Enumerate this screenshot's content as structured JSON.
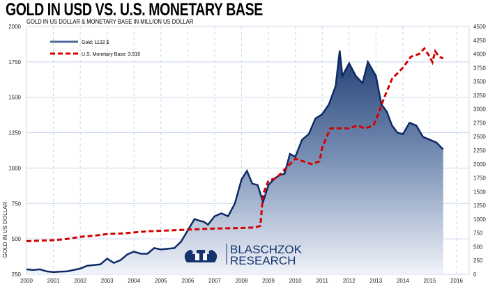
{
  "header": {
    "title": "GOLD IN USD VS. U.S. MONETARY BASE",
    "subtitle": "GOLD IN US DOLLAR & MONETARY BASE IN MILLION US DOLLAR"
  },
  "watermark": {
    "line1": "BLASCHZOK",
    "line2": "RESEARCH"
  },
  "colors": {
    "gold": "#0d2a66",
    "base": "#d40000",
    "grid": "#c8d8ec"
  },
  "chart_data": {
    "type": "line",
    "title": "GOLD IN USD VS. U.S. MONETARY BASE",
    "ylabel": "GOLD IN US DOLLAR",
    "xlim": [
      2000,
      2016.2
    ],
    "ylim": [
      250,
      2000
    ],
    "ylim_right": [
      0,
      4500
    ],
    "x_ticks": [
      "2000",
      "2001",
      "2002",
      "2003",
      "2004",
      "2005",
      "2006",
      "2007",
      "2008",
      "2009",
      "2010",
      "2011",
      "2012",
      "2013",
      "2014",
      "2015",
      "2016"
    ],
    "y_ticks": [
      "250",
      "500",
      "750",
      "1000",
      "1250",
      "1500",
      "1750",
      "2000"
    ],
    "y_ticks_right": [
      "0",
      "250",
      "500",
      "750",
      "1000",
      "1250",
      "1500",
      "1750",
      "2000",
      "2250",
      "2500",
      "2750",
      "3000",
      "3250",
      "3500",
      "3750",
      "4000",
      "4250",
      "4500"
    ],
    "legend": {
      "placement": "top-left",
      "gold": "Gold: 1132 $",
      "base": "U.S. Monetary Base:   3.919"
    },
    "series": [
      {
        "name": "Gold",
        "axis": "left",
        "x": [
          2000,
          2000.25,
          2000.5,
          2000.75,
          2001,
          2001.25,
          2001.5,
          2001.75,
          2002,
          2002.25,
          2002.5,
          2002.75,
          2003,
          2003.25,
          2003.5,
          2003.75,
          2004,
          2004.25,
          2004.5,
          2004.75,
          2005,
          2005.25,
          2005.5,
          2005.75,
          2006,
          2006.25,
          2006.4,
          2006.6,
          2006.75,
          2007,
          2007.25,
          2007.5,
          2007.75,
          2008,
          2008.2,
          2008.4,
          2008.6,
          2008.8,
          2009,
          2009.2,
          2009.4,
          2009.6,
          2009.8,
          2010,
          2010.25,
          2010.5,
          2010.75,
          2011,
          2011.25,
          2011.5,
          2011.65,
          2011.75,
          2012,
          2012.25,
          2012.5,
          2012.7,
          2013,
          2013.2,
          2013.4,
          2013.6,
          2013.8,
          2014,
          2014.25,
          2014.5,
          2014.75,
          2015,
          2015.25,
          2015.5
        ],
        "values": [
          285,
          280,
          285,
          270,
          265,
          268,
          270,
          280,
          290,
          310,
          315,
          320,
          360,
          330,
          350,
          390,
          410,
          395,
          395,
          435,
          425,
          430,
          435,
          480,
          560,
          640,
          630,
          620,
          600,
          660,
          680,
          660,
          750,
          920,
          980,
          890,
          880,
          760,
          880,
          920,
          950,
          960,
          1100,
          1080,
          1200,
          1240,
          1350,
          1380,
          1450,
          1580,
          1830,
          1650,
          1740,
          1650,
          1600,
          1750,
          1650,
          1450,
          1400,
          1300,
          1250,
          1240,
          1320,
          1300,
          1220,
          1200,
          1180,
          1132
        ]
      },
      {
        "name": "U.S. Monetary Base",
        "axis": "right",
        "x": [
          2000,
          2001,
          2001.5,
          2002,
          2002.5,
          2003,
          2003.5,
          2004,
          2004.5,
          2005,
          2005.5,
          2006,
          2006.5,
          2007,
          2007.5,
          2008,
          2008.5,
          2008.7,
          2008.8,
          2009,
          2009.3,
          2009.6,
          2010,
          2010.3,
          2010.6,
          2010.9,
          2011,
          2011.3,
          2011.6,
          2012,
          2012.3,
          2012.6,
          2012.9,
          2013,
          2013.3,
          2013.6,
          2014,
          2014.3,
          2014.6,
          2014.8,
          2015,
          2015.1,
          2015.2,
          2015.35,
          2015.5
        ],
        "values": [
          600,
          620,
          640,
          680,
          700,
          730,
          740,
          760,
          780,
          790,
          800,
          810,
          820,
          830,
          835,
          840,
          850,
          880,
          1450,
          1700,
          1750,
          1900,
          2100,
          2050,
          2000,
          2050,
          2300,
          2650,
          2650,
          2650,
          2700,
          2650,
          2700,
          2800,
          3200,
          3550,
          3750,
          3950,
          4000,
          4100,
          3950,
          3850,
          4050,
          3950,
          3919
        ]
      }
    ]
  }
}
